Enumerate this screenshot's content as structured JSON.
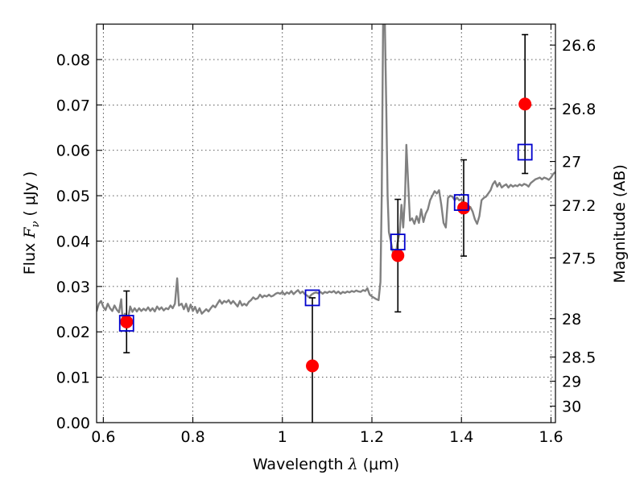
{
  "chart_data": {
    "type": "scatter",
    "xlabel_prefix": "Wavelength",
    "xlabel_symbol": "λ",
    "xlabel_unit": "(μm)",
    "ylabel_prefix": "Flux",
    "ylabel_symbol": "F",
    "ylabel_subscript": "ν",
    "ylabel_unit": "( μJy )",
    "y2label": "Magnitude (AB)",
    "xlim": [
      0.585,
      1.61
    ],
    "ylim": [
      0.0,
      0.0878
    ],
    "grid": true,
    "x_ticks": [
      {
        "value": 0.6,
        "label": "0.6"
      },
      {
        "value": 0.8,
        "label": "0.8"
      },
      {
        "value": 1.0,
        "label": "1"
      },
      {
        "value": 1.2,
        "label": "1.2"
      },
      {
        "value": 1.4,
        "label": "1.4"
      },
      {
        "value": 1.6,
        "label": "1.6"
      }
    ],
    "y_ticks": [
      {
        "value": 0.0,
        "label": "0.00"
      },
      {
        "value": 0.01,
        "label": "0.01"
      },
      {
        "value": 0.02,
        "label": "0.02"
      },
      {
        "value": 0.03,
        "label": "0.03"
      },
      {
        "value": 0.04,
        "label": "0.04"
      },
      {
        "value": 0.05,
        "label": "0.05"
      },
      {
        "value": 0.06,
        "label": "0.06"
      },
      {
        "value": 0.07,
        "label": "0.07"
      },
      {
        "value": 0.08,
        "label": "0.08"
      }
    ],
    "y2_ticks": [
      {
        "value": 26.6,
        "label": "26.6"
      },
      {
        "value": 26.8,
        "label": "26.8"
      },
      {
        "value": 27.0,
        "label": "27"
      },
      {
        "value": 27.2,
        "label": "27.2"
      },
      {
        "value": 27.5,
        "label": "27.5"
      },
      {
        "value": 28.0,
        "label": "28"
      },
      {
        "value": 28.5,
        "label": "28.5"
      },
      {
        "value": 29.0,
        "label": "29"
      },
      {
        "value": 30.0,
        "label": "30"
      }
    ],
    "spectrum": {
      "color": "#808080",
      "points": [
        [
          0.585,
          0.0245
        ],
        [
          0.59,
          0.0262
        ],
        [
          0.595,
          0.0268
        ],
        [
          0.6,
          0.0255
        ],
        [
          0.605,
          0.0248
        ],
        [
          0.61,
          0.0262
        ],
        [
          0.615,
          0.0252
        ],
        [
          0.62,
          0.0246
        ],
        [
          0.625,
          0.0258
        ],
        [
          0.63,
          0.0249
        ],
        [
          0.635,
          0.0243
        ],
        [
          0.64,
          0.0272
        ],
        [
          0.643,
          0.0225
        ],
        [
          0.648,
          0.024
        ],
        [
          0.655,
          0.0226
        ],
        [
          0.66,
          0.0256
        ],
        [
          0.665,
          0.0244
        ],
        [
          0.67,
          0.0252
        ],
        [
          0.675,
          0.0245
        ],
        [
          0.68,
          0.0252
        ],
        [
          0.685,
          0.0246
        ],
        [
          0.69,
          0.0251
        ],
        [
          0.695,
          0.0247
        ],
        [
          0.7,
          0.0254
        ],
        [
          0.705,
          0.0246
        ],
        [
          0.71,
          0.0252
        ],
        [
          0.715,
          0.0245
        ],
        [
          0.72,
          0.0256
        ],
        [
          0.725,
          0.0249
        ],
        [
          0.73,
          0.0254
        ],
        [
          0.735,
          0.0247
        ],
        [
          0.74,
          0.0252
        ],
        [
          0.745,
          0.025
        ],
        [
          0.75,
          0.0258
        ],
        [
          0.755,
          0.0252
        ],
        [
          0.76,
          0.0262
        ],
        [
          0.765,
          0.0318
        ],
        [
          0.769,
          0.0258
        ],
        [
          0.775,
          0.0262
        ],
        [
          0.78,
          0.025
        ],
        [
          0.785,
          0.0262
        ],
        [
          0.79,
          0.0245
        ],
        [
          0.795,
          0.026
        ],
        [
          0.8,
          0.0246
        ],
        [
          0.805,
          0.0255
        ],
        [
          0.81,
          0.0242
        ],
        [
          0.815,
          0.0252
        ],
        [
          0.82,
          0.024
        ],
        [
          0.825,
          0.0245
        ],
        [
          0.83,
          0.025
        ],
        [
          0.835,
          0.0245
        ],
        [
          0.84,
          0.0252
        ],
        [
          0.845,
          0.0258
        ],
        [
          0.85,
          0.0254
        ],
        [
          0.855,
          0.0262
        ],
        [
          0.86,
          0.027
        ],
        [
          0.865,
          0.0262
        ],
        [
          0.87,
          0.0268
        ],
        [
          0.875,
          0.0265
        ],
        [
          0.88,
          0.027
        ],
        [
          0.885,
          0.0262
        ],
        [
          0.89,
          0.0268
        ],
        [
          0.895,
          0.0262
        ],
        [
          0.9,
          0.0256
        ],
        [
          0.905,
          0.0268
        ],
        [
          0.91,
          0.0258
        ],
        [
          0.915,
          0.0262
        ],
        [
          0.92,
          0.0258
        ],
        [
          0.925,
          0.0266
        ],
        [
          0.93,
          0.027
        ],
        [
          0.935,
          0.0276
        ],
        [
          0.94,
          0.0272
        ],
        [
          0.945,
          0.0274
        ],
        [
          0.95,
          0.0282
        ],
        [
          0.955,
          0.0276
        ],
        [
          0.96,
          0.028
        ],
        [
          0.965,
          0.0278
        ],
        [
          0.97,
          0.0282
        ],
        [
          0.975,
          0.0278
        ],
        [
          0.98,
          0.028
        ],
        [
          0.985,
          0.0284
        ],
        [
          0.99,
          0.0286
        ],
        [
          0.995,
          0.0284
        ],
        [
          1.0,
          0.0288
        ],
        [
          1.005,
          0.0282
        ],
        [
          1.01,
          0.0287
        ],
        [
          1.015,
          0.0284
        ],
        [
          1.02,
          0.029
        ],
        [
          1.025,
          0.0283
        ],
        [
          1.03,
          0.0288
        ],
        [
          1.035,
          0.0292
        ],
        [
          1.04,
          0.0285
        ],
        [
          1.045,
          0.0289
        ],
        [
          1.05,
          0.0283
        ],
        [
          1.055,
          0.028
        ],
        [
          1.06,
          0.0276
        ],
        [
          1.065,
          0.0282
        ],
        [
          1.07,
          0.0285
        ],
        [
          1.075,
          0.0287
        ],
        [
          1.08,
          0.0285
        ],
        [
          1.085,
          0.0288
        ],
        [
          1.09,
          0.0284
        ],
        [
          1.095,
          0.0288
        ],
        [
          1.1,
          0.0286
        ],
        [
          1.105,
          0.0289
        ],
        [
          1.11,
          0.0287
        ],
        [
          1.115,
          0.029
        ],
        [
          1.12,
          0.0285
        ],
        [
          1.125,
          0.0289
        ],
        [
          1.13,
          0.0284
        ],
        [
          1.135,
          0.0288
        ],
        [
          1.14,
          0.0286
        ],
        [
          1.145,
          0.0289
        ],
        [
          1.15,
          0.0287
        ],
        [
          1.155,
          0.029
        ],
        [
          1.16,
          0.0288
        ],
        [
          1.165,
          0.0291
        ],
        [
          1.17,
          0.0289
        ],
        [
          1.175,
          0.0288
        ],
        [
          1.18,
          0.0292
        ],
        [
          1.185,
          0.029
        ],
        [
          1.19,
          0.0296
        ],
        [
          1.195,
          0.0282
        ],
        [
          1.2,
          0.0278
        ],
        [
          1.205,
          0.0275
        ],
        [
          1.21,
          0.0272
        ],
        [
          1.215,
          0.027
        ],
        [
          1.219,
          0.031
        ],
        [
          1.222,
          0.05
        ],
        [
          1.225,
          0.088
        ],
        [
          1.229,
          0.088
        ],
        [
          1.232,
          0.07
        ],
        [
          1.235,
          0.05
        ],
        [
          1.238,
          0.042
        ],
        [
          1.242,
          0.04
        ],
        [
          1.247,
          0.0375
        ],
        [
          1.252,
          0.036
        ],
        [
          1.257,
          0.0395
        ],
        [
          1.262,
          0.042
        ],
        [
          1.266,
          0.048
        ],
        [
          1.27,
          0.043
        ],
        [
          1.274,
          0.05
        ],
        [
          1.277,
          0.0612
        ],
        [
          1.281,
          0.053
        ],
        [
          1.285,
          0.0445
        ],
        [
          1.29,
          0.045
        ],
        [
          1.295,
          0.0438
        ],
        [
          1.3,
          0.0455
        ],
        [
          1.305,
          0.044
        ],
        [
          1.31,
          0.047
        ],
        [
          1.315,
          0.0442
        ],
        [
          1.32,
          0.046
        ],
        [
          1.325,
          0.047
        ],
        [
          1.33,
          0.049
        ],
        [
          1.335,
          0.05
        ],
        [
          1.34,
          0.051
        ],
        [
          1.345,
          0.0505
        ],
        [
          1.35,
          0.0512
        ],
        [
          1.355,
          0.048
        ],
        [
          1.36,
          0.044
        ],
        [
          1.365,
          0.043
        ],
        [
          1.37,
          0.0495
        ],
        [
          1.375,
          0.05
        ],
        [
          1.38,
          0.0498
        ],
        [
          1.385,
          0.049
        ],
        [
          1.39,
          0.0496
        ],
        [
          1.395,
          0.049
        ],
        [
          1.4,
          0.0492
        ],
        [
          1.405,
          0.0485
        ],
        [
          1.41,
          0.0478
        ],
        [
          1.415,
          0.047
        ],
        [
          1.42,
          0.0475
        ],
        [
          1.425,
          0.0465
        ],
        [
          1.43,
          0.0448
        ],
        [
          1.435,
          0.0438
        ],
        [
          1.44,
          0.0455
        ],
        [
          1.445,
          0.049
        ],
        [
          1.45,
          0.0495
        ],
        [
          1.455,
          0.0498
        ],
        [
          1.46,
          0.0505
        ],
        [
          1.465,
          0.0512
        ],
        [
          1.47,
          0.0525
        ],
        [
          1.475,
          0.0532
        ],
        [
          1.48,
          0.052
        ],
        [
          1.485,
          0.0528
        ],
        [
          1.49,
          0.0518
        ],
        [
          1.495,
          0.0522
        ],
        [
          1.5,
          0.0525
        ],
        [
          1.505,
          0.0518
        ],
        [
          1.51,
          0.0524
        ],
        [
          1.515,
          0.052
        ],
        [
          1.52,
          0.0523
        ],
        [
          1.525,
          0.0521
        ],
        [
          1.53,
          0.0525
        ],
        [
          1.535,
          0.0522
        ],
        [
          1.54,
          0.0526
        ],
        [
          1.545,
          0.0524
        ],
        [
          1.55,
          0.052
        ],
        [
          1.555,
          0.0528
        ],
        [
          1.56,
          0.0532
        ],
        [
          1.565,
          0.0536
        ],
        [
          1.57,
          0.0538
        ],
        [
          1.575,
          0.054
        ],
        [
          1.58,
          0.0536
        ],
        [
          1.585,
          0.054
        ],
        [
          1.59,
          0.0538
        ],
        [
          1.595,
          0.0535
        ],
        [
          1.6,
          0.054
        ],
        [
          1.605,
          0.0548
        ],
        [
          1.61,
          0.0552
        ]
      ]
    },
    "observed": {
      "color": "#ff0000",
      "points": [
        {
          "x": 0.652,
          "y": 0.0222,
          "yerr": 0.0068
        },
        {
          "x": 1.067,
          "y": 0.0125,
          "yerr": 0.015
        },
        {
          "x": 1.258,
          "y": 0.0368,
          "yerr": 0.0124
        },
        {
          "x": 1.405,
          "y": 0.0473,
          "yerr": 0.0106
        },
        {
          "x": 1.542,
          "y": 0.0702,
          "yerr": 0.0153
        }
      ]
    },
    "model": {
      "color": "#0000cc",
      "points": [
        {
          "x": 0.652,
          "y": 0.0219
        },
        {
          "x": 1.067,
          "y": 0.0275
        },
        {
          "x": 1.258,
          "y": 0.0398
        },
        {
          "x": 1.4,
          "y": 0.0485
        },
        {
          "x": 1.542,
          "y": 0.0596
        }
      ]
    }
  }
}
